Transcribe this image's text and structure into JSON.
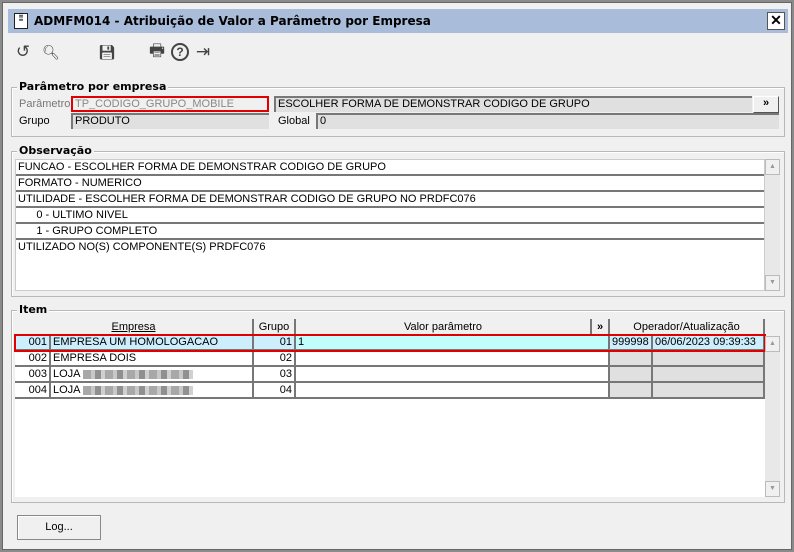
{
  "window": {
    "title": "ADMFM014 - Atribuição de Valor a Parâmetro por Empresa",
    "close": "✕"
  },
  "toolbar": {
    "undo": "↺",
    "search": "🔍︎",
    "save": "💾︎",
    "print": "🖶",
    "help": "?",
    "exit": "⇥"
  },
  "param_group": {
    "legend": "Parâmetro por empresa",
    "parametro_label": "Parâmetro",
    "parametro_value": "TP_CODIGO_GRUPO_MOBILE",
    "descricao": "ESCOLHER FORMA DE DEMONSTRAR CODIGO DE GRUPO",
    "expand": "»",
    "grupo_label": "Grupo",
    "grupo_value": "PRODUTO",
    "global_label": "Global",
    "global_value": "0"
  },
  "observacao": {
    "legend": "Observação",
    "lines": [
      "FUNCAO - ESCOLHER FORMA DE DEMONSTRAR CODIGO DE GRUPO",
      "FORMATO - NUMERICO",
      "UTILIDADE - ESCOLHER FORMA DE DEMONSTRAR CODIGO DE GRUPO NO PRDFC076",
      "      0 - ULTIMO NIVEL",
      "      1 - GRUPO COMPLETO",
      "UTILIZADO NO(S) COMPONENTE(S) PRDFC076"
    ]
  },
  "item": {
    "legend": "Item",
    "headers": {
      "empresa": "Empresa",
      "grupo": "Grupo",
      "valor": "Valor parâmetro",
      "expand": "»",
      "operador": "Operador/Atualização"
    },
    "rows": [
      {
        "num": "001",
        "empresa": "EMPRESA UM HOMOLOGACAO",
        "grupo": "01",
        "valor": "1",
        "operador": "999998",
        "data": "06/06/2023 09:39:33"
      },
      {
        "num": "002",
        "empresa": "EMPRESA DOIS",
        "grupo": "02",
        "valor": "",
        "operador": "",
        "data": ""
      },
      {
        "num": "003",
        "empresa": "LOJA",
        "grupo": "03",
        "valor": "",
        "operador": "",
        "data": ""
      },
      {
        "num": "004",
        "empresa": "LOJA",
        "grupo": "04",
        "valor": "",
        "operador": "",
        "data": ""
      }
    ]
  },
  "footer": {
    "log": "Log..."
  }
}
